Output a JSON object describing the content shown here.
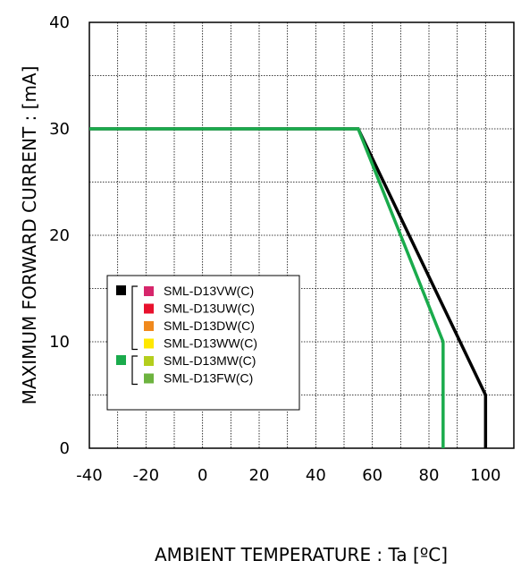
{
  "chart_data": {
    "type": "line",
    "xlabel": "AMBIENT TEMPERATURE : Ta [ºC]",
    "ylabel": "MAXIMUM FORWARD CURRENT : [mA]",
    "xlim": [
      -40,
      110
    ],
    "ylim": [
      0,
      40
    ],
    "x_ticks": [
      -40,
      -20,
      0,
      20,
      40,
      60,
      80,
      100
    ],
    "y_ticks": [
      0,
      10,
      20,
      30,
      40
    ],
    "grid": true,
    "legend_position": "lower-left",
    "series": [
      {
        "color": "#000000",
        "points": [
          [
            -40,
            30
          ],
          [
            55,
            30
          ],
          [
            100,
            5
          ],
          [
            100,
            0
          ]
        ]
      },
      {
        "color": "#1aab4c",
        "points": [
          [
            -40,
            30
          ],
          [
            55,
            30
          ],
          [
            85,
            10
          ],
          [
            85,
            0
          ]
        ]
      }
    ],
    "legend": {
      "groups": [
        {
          "color": "#000000",
          "items": [
            {
              "label": "SML-D13VW(C)",
              "color": "#d6266b"
            },
            {
              "label": "SML-D13UW(C)",
              "color": "#e8112d"
            },
            {
              "label": "SML-D13DW(C)",
              "color": "#f0891d"
            },
            {
              "label": "SML-D13WW(C)",
              "color": "#ffe800"
            }
          ]
        },
        {
          "color": "#1aab4c",
          "items": [
            {
              "label": "SML-D13MW(C)",
              "color": "#b4ce1d"
            },
            {
              "label": "SML-D13FW(C)",
              "color": "#6db33f"
            }
          ]
        }
      ]
    }
  }
}
